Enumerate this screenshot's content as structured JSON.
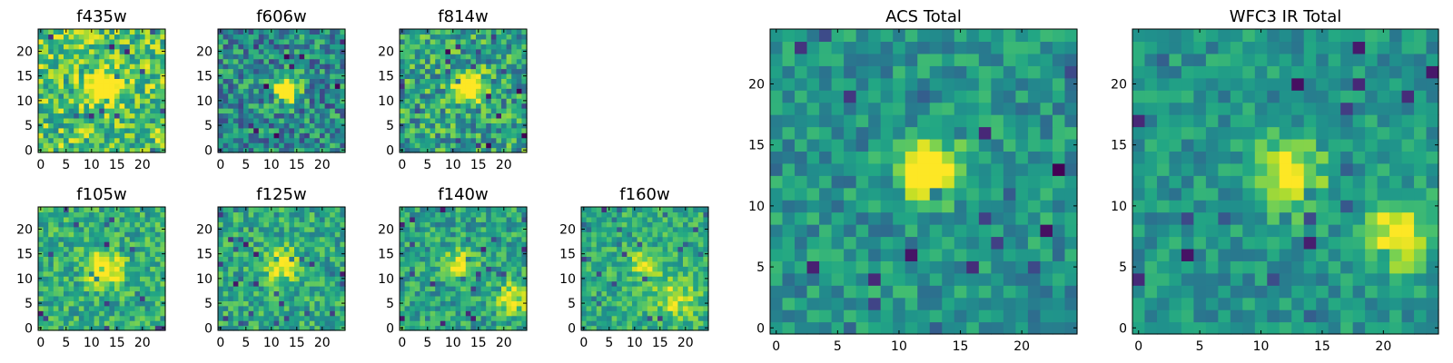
{
  "chart_data": [
    {
      "type": "heatmap",
      "title": "f435w",
      "grid_size": 25,
      "seed": 11,
      "src": [
        [
          12.5,
          12.5,
          2.2,
          0.7
        ]
      ],
      "noise": 0.55,
      "base": 0.72,
      "colormap": "viridis"
    },
    {
      "type": "heatmap",
      "title": "f606w",
      "grid_size": 25,
      "seed": 23,
      "src": [
        [
          13,
          12.5,
          1.8,
          0.8
        ]
      ],
      "noise": 0.55,
      "base": 0.48,
      "colormap": "viridis"
    },
    {
      "type": "heatmap",
      "title": "f814w",
      "grid_size": 25,
      "seed": 37,
      "src": [
        [
          13,
          13,
          2.0,
          0.75
        ]
      ],
      "noise": 0.55,
      "base": 0.58,
      "colormap": "viridis"
    },
    {
      "type": "heatmap",
      "title": "f105w",
      "grid_size": 25,
      "seed": 41,
      "src": [
        [
          12.5,
          12,
          2.2,
          0.6
        ]
      ],
      "noise": 0.4,
      "base": 0.62,
      "colormap": "viridis"
    },
    {
      "type": "heatmap",
      "title": "f125w",
      "grid_size": 25,
      "seed": 53,
      "src": [
        [
          12,
          13,
          2.2,
          0.5
        ]
      ],
      "noise": 0.4,
      "base": 0.6,
      "colormap": "viridis"
    },
    {
      "type": "heatmap",
      "title": "f140w",
      "grid_size": 25,
      "seed": 67,
      "src": [
        [
          11.5,
          13,
          2.0,
          0.45
        ],
        [
          22,
          6,
          2.5,
          0.35
        ]
      ],
      "noise": 0.4,
      "base": 0.58,
      "colormap": "viridis"
    },
    {
      "type": "heatmap",
      "title": "f160w",
      "grid_size": 25,
      "seed": 79,
      "src": [
        [
          12,
          13,
          1.8,
          0.4
        ],
        [
          18,
          6,
          3.0,
          0.3
        ]
      ],
      "noise": 0.35,
      "base": 0.62,
      "colormap": "viridis"
    },
    {
      "type": "heatmap",
      "title": "ACS Total",
      "grid_size": 25,
      "seed": 97,
      "src": [
        [
          12.5,
          13,
          1.6,
          0.9
        ]
      ],
      "noise": 0.35,
      "base": 0.52,
      "colormap": "viridis"
    },
    {
      "type": "heatmap",
      "title": "WFC3 IR Total",
      "grid_size": 25,
      "seed": 113,
      "src": [
        [
          12.2,
          12.5,
          2.0,
          0.55
        ],
        [
          21,
          7.5,
          2.0,
          0.5
        ]
      ],
      "noise": 0.3,
      "base": 0.52,
      "colormap": "viridis"
    }
  ],
  "axes": {
    "small_xticks": [
      "0",
      "5",
      "10",
      "15",
      "20"
    ],
    "small_yticks": [
      "0",
      "5",
      "10",
      "15",
      "20"
    ],
    "large_xticks": [
      "0",
      "5",
      "10",
      "15",
      "20"
    ],
    "large_yticks": [
      "0",
      "5",
      "10",
      "15",
      "20"
    ]
  }
}
